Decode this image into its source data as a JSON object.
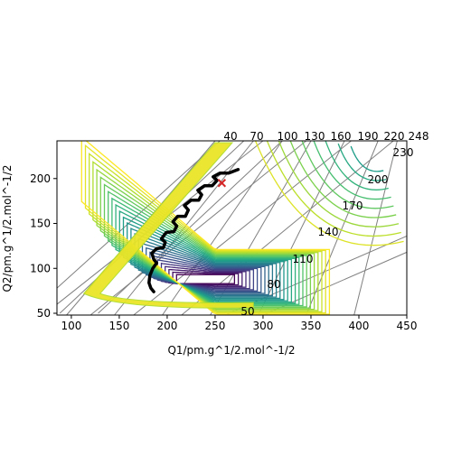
{
  "chart_data": {
    "type": "contour",
    "xlabel": "Q1/pm.g^1/2.mol^-1/2",
    "ylabel": "Q2/pm.g^1/2.mol^-1/2",
    "xlim": [
      85,
      450
    ],
    "ylim": [
      48,
      242
    ],
    "x_ticks": [
      100,
      150,
      200,
      250,
      300,
      350,
      400,
      450
    ],
    "y_ticks": [
      50,
      100,
      150,
      200
    ],
    "grid": true,
    "colormap": "viridis",
    "oblique_axes": {
      "top_labels": [
        "40",
        "70",
        "100",
        "130",
        "160",
        "190",
        "220",
        "248"
      ],
      "right_labels": [
        "50",
        "80",
        "110",
        "140",
        "170",
        "200",
        "230",
        "248"
      ]
    },
    "contours": {
      "level_count": 26,
      "minimum": [
        250,
        88
      ]
    },
    "trajectory": {
      "color": "#000000",
      "points": [
        [
          186,
          74
        ],
        [
          183,
          78
        ],
        [
          181,
          84
        ],
        [
          182,
          92
        ],
        [
          185,
          100
        ],
        [
          189,
          106
        ],
        [
          186,
          110
        ],
        [
          184,
          117
        ],
        [
          189,
          122
        ],
        [
          196,
          123
        ],
        [
          198,
          129
        ],
        [
          194,
          133
        ],
        [
          199,
          140
        ],
        [
          207,
          141
        ],
        [
          210,
          147
        ],
        [
          206,
          152
        ],
        [
          211,
          158
        ],
        [
          219,
          158
        ],
        [
          222,
          165
        ],
        [
          218,
          170
        ],
        [
          225,
          176
        ],
        [
          233,
          176
        ],
        [
          236,
          182
        ],
        [
          232,
          187
        ],
        [
          239,
          192
        ],
        [
          247,
          192
        ],
        [
          252,
          198
        ],
        [
          248,
          202
        ],
        [
          255,
          206
        ],
        [
          264,
          206
        ],
        [
          274,
          210
        ]
      ]
    },
    "marker": {
      "x": 257,
      "y": 195,
      "shape": "x",
      "color": "#d62728"
    }
  }
}
